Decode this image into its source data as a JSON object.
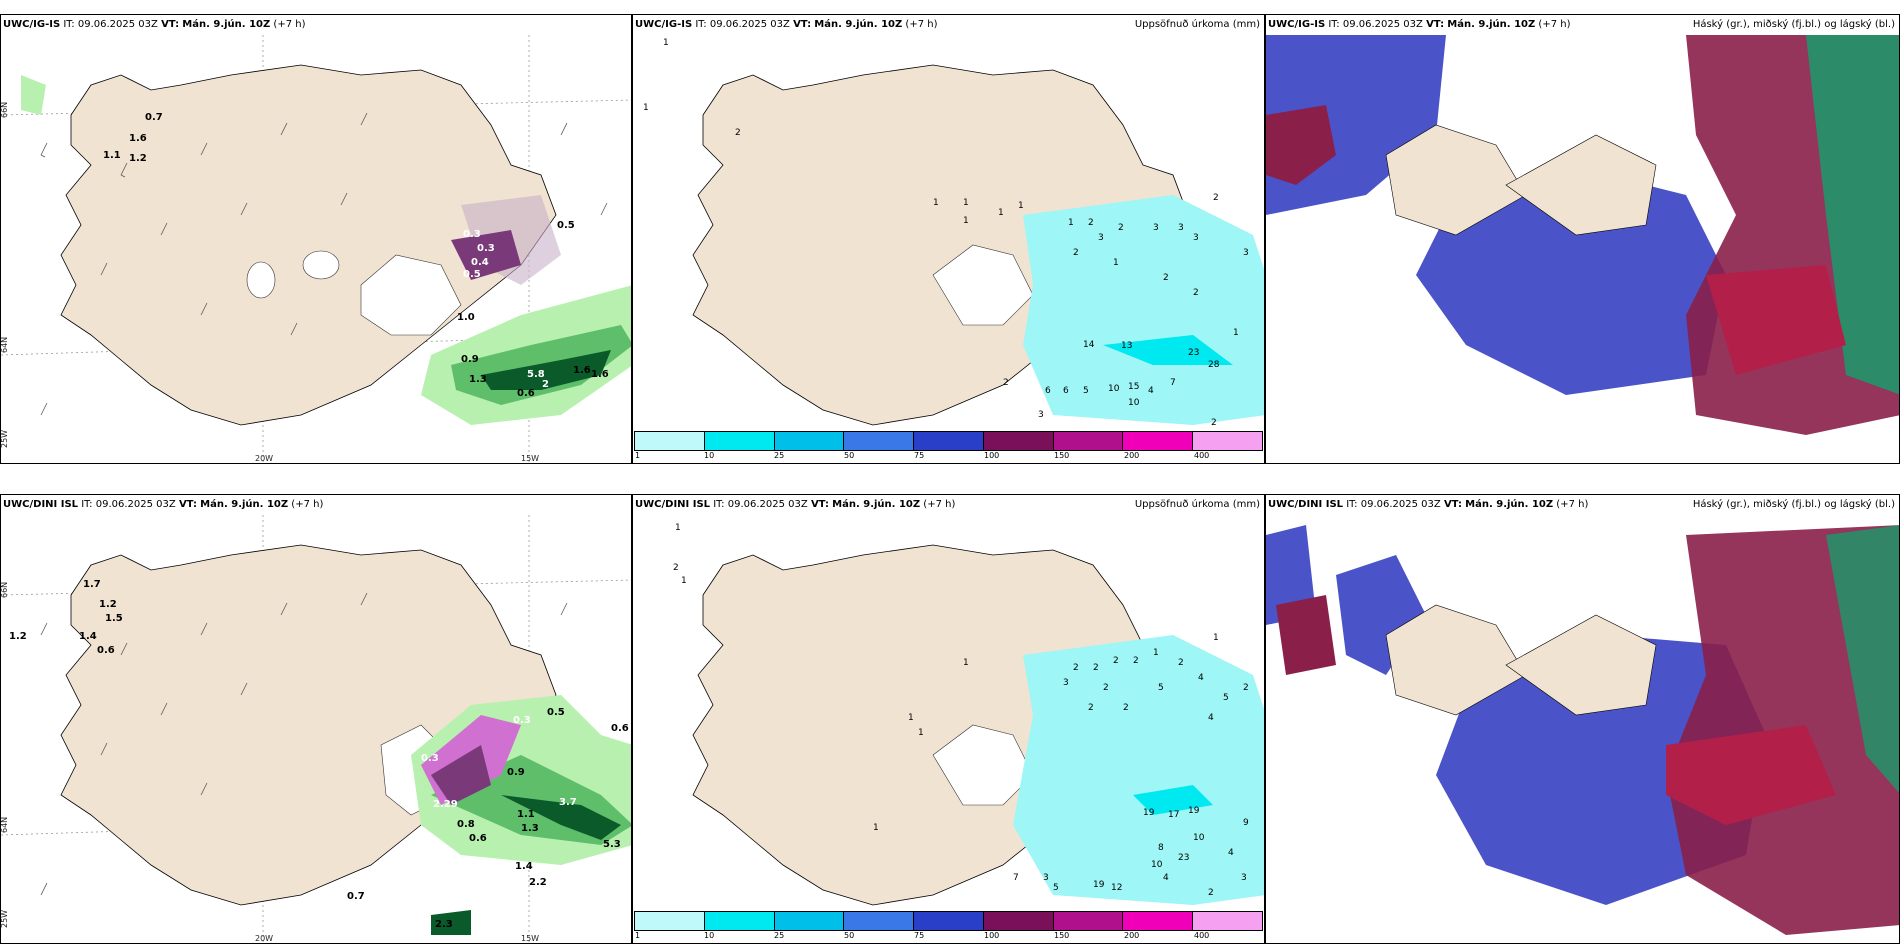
{
  "rows": [
    {
      "model": "UWC/IG-IS",
      "it_label": "IT:",
      "it_value": "09.06.2025 03Z",
      "vt_label": "VT:",
      "vt_value": "Mán. 9.jún. 10Z",
      "lead": "(+7 h)",
      "wind_values": [
        "0.7",
        "1.6",
        "1.1",
        "1.2",
        "0.3",
        "0.3",
        "0.4",
        "0.5",
        "0.5",
        "1.0",
        "0.9",
        "1.3",
        "5.8",
        "0.6",
        "2",
        "1.6",
        "1.6"
      ],
      "accum_values": [
        "1",
        "1",
        "2",
        "1",
        "1",
        "1",
        "1",
        "1",
        "1",
        "2",
        "3",
        "2",
        "3",
        "3",
        "3",
        "2",
        "3",
        "2",
        "1",
        "2",
        "2",
        "1",
        "14",
        "13",
        "23",
        "28",
        "2",
        "6",
        "6",
        "5",
        "10",
        "15",
        "4",
        "10",
        "7",
        "3",
        "2"
      ]
    },
    {
      "model": "UWC/DINI ISL",
      "it_label": "IT:",
      "it_value": "09.06.2025 03Z",
      "vt_label": "VT:",
      "vt_value": "Mán. 9.jún. 10Z",
      "lead": "(+7 h)",
      "wind_values": [
        "1.7",
        "1.2",
        "1.5",
        "1.4",
        "0.6",
        "1.2",
        "0.3",
        "0.3",
        "0.5",
        "0.6",
        "0.9",
        "2.29",
        "0.8",
        "0.6",
        "1.1",
        "1.3",
        "3.7",
        "5.3",
        "1.4",
        "2.2",
        "0.7",
        "2.3"
      ],
      "accum_values": [
        "1",
        "2",
        "1",
        "1",
        "1",
        "1",
        "1",
        "2",
        "2",
        "2",
        "2",
        "2",
        "1",
        "3",
        "2",
        "5",
        "4",
        "5",
        "2",
        "2",
        "4",
        "2",
        "1",
        "19",
        "17",
        "19",
        "10",
        "9",
        "8",
        "23",
        "7",
        "3",
        "5",
        "19",
        "12",
        "4",
        "10",
        "4",
        "3",
        "2"
      ]
    }
  ],
  "accum_title": "Uppsöfnuð úrkoma (mm)",
  "cloud_title": "Háský (gr.), miðský (fj.bl.) og lágský (bl.)",
  "legend": {
    "ticks": [
      "1",
      "10",
      "25",
      "50",
      "75",
      "100",
      "150",
      "200",
      "400"
    ],
    "colors": [
      "#bff9f9",
      "#00e8f0",
      "#00bfe8",
      "#3a78e8",
      "#2a3fc8",
      "#7a0f5a",
      "#b0108c",
      "#f000b8",
      "#f5a0f0"
    ]
  },
  "axes": {
    "lon_left": "20W",
    "lon_right": "15W",
    "lat_top": "66N",
    "lat_mid": "64N",
    "lat_bottom": "25W"
  },
  "colors": {
    "land": "#f1e3d2",
    "coast": "#000000",
    "precip_light": "#b8f0b0",
    "precip_mid": "#5fbe6a",
    "precip_dark": "#0a5a2a",
    "snow": "#7a3a7a",
    "accum": "#9ef6f6",
    "cloud_low": "#4a54c8",
    "cloud_mid": "#8a1f4a",
    "cloud_high": "#1a9a6a"
  }
}
